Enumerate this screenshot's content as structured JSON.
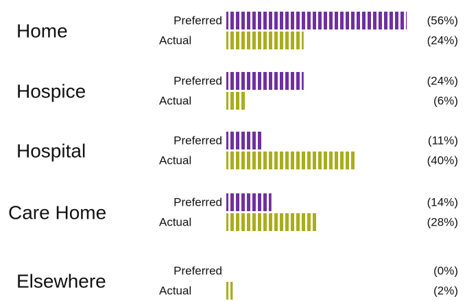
{
  "chart_data": {
    "type": "bar",
    "orientation": "horizontal",
    "categories": [
      "Home",
      "Hospice",
      "Hospital",
      "Care Home",
      "Elsewhere"
    ],
    "series": [
      {
        "name": "Preferred",
        "color": "#7030a0",
        "values": [
          56,
          24,
          11,
          14,
          0
        ],
        "value_labels": [
          "(56%)",
          "(24%)",
          "(11%)",
          "(14%)",
          "(0%)"
        ]
      },
      {
        "name": "Actual",
        "color": "#a9ad1c",
        "values": [
          24,
          6,
          40,
          28,
          2
        ],
        "value_labels": [
          "(24%)",
          "(6%)",
          "(40%)",
          "(28%)",
          "(2%)"
        ]
      }
    ]
  }
}
